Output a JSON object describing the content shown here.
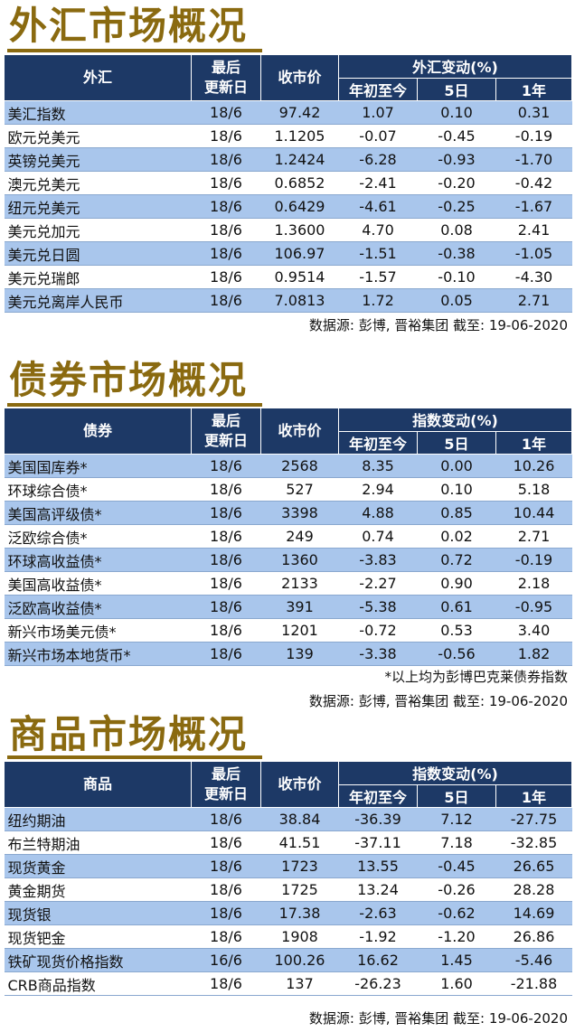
{
  "fx": {
    "title": "外汇市场概况",
    "headers": {
      "name": "外汇",
      "updated": "最后\n更新日",
      "close": "收市价",
      "change_group": "外汇变动(%)",
      "ytd": "年初至今",
      "d5": "5日",
      "y1": "1年"
    },
    "rows": [
      {
        "name": "美汇指数",
        "date": "18/6",
        "close": "97.42",
        "ytd": "1.07",
        "d5": "0.10",
        "y1": "0.31"
      },
      {
        "name": "欧元兑美元",
        "date": "18/6",
        "close": "1.1205",
        "ytd": "-0.07",
        "d5": "-0.45",
        "y1": "-0.19"
      },
      {
        "name": "英镑兑美元",
        "date": "18/6",
        "close": "1.2424",
        "ytd": "-6.28",
        "d5": "-0.93",
        "y1": "-1.70"
      },
      {
        "name": "澳元兑美元",
        "date": "18/6",
        "close": "0.6852",
        "ytd": "-2.41",
        "d5": "-0.20",
        "y1": "-0.42"
      },
      {
        "name": "纽元兑美元",
        "date": "18/6",
        "close": "0.6429",
        "ytd": "-4.61",
        "d5": "-0.25",
        "y1": "-1.67"
      },
      {
        "name": "美元兑加元",
        "date": "18/6",
        "close": "1.3600",
        "ytd": "4.70",
        "d5": "0.08",
        "y1": "2.41"
      },
      {
        "name": "美元兑日圆",
        "date": "18/6",
        "close": "106.97",
        "ytd": "-1.51",
        "d5": "-0.38",
        "y1": "-1.05"
      },
      {
        "name": "美元兑瑞郎",
        "date": "18/6",
        "close": "0.9514",
        "ytd": "-1.57",
        "d5": "-0.10",
        "y1": "-4.30"
      },
      {
        "name": "美元兑离岸人民币",
        "date": "18/6",
        "close": "7.0813",
        "ytd": "1.72",
        "d5": "0.05",
        "y1": "2.71"
      }
    ],
    "source": "数据源: 彭博, 晋裕集团 截至: 19-06-2020"
  },
  "bonds": {
    "title": "债券市场概况",
    "headers": {
      "name": "债券",
      "updated": "最后\n更新日",
      "close": "收市价",
      "change_group": "指数变动(%)",
      "ytd": "年初至今",
      "d5": "5日",
      "y1": "1年"
    },
    "rows": [
      {
        "name": "美国国库券*",
        "date": "18/6",
        "close": "2568",
        "ytd": "8.35",
        "d5": "0.00",
        "y1": "10.26"
      },
      {
        "name": "环球综合债*",
        "date": "18/6",
        "close": "527",
        "ytd": "2.94",
        "d5": "0.10",
        "y1": "5.18"
      },
      {
        "name": "美国高评级债*",
        "date": "18/6",
        "close": "3398",
        "ytd": "4.88",
        "d5": "0.85",
        "y1": "10.44"
      },
      {
        "name": "泛欧综合债*",
        "date": "18/6",
        "close": "249",
        "ytd": "0.74",
        "d5": "0.02",
        "y1": "2.71"
      },
      {
        "name": "环球高收益债*",
        "date": "18/6",
        "close": "1360",
        "ytd": "-3.83",
        "d5": "0.72",
        "y1": "-0.19"
      },
      {
        "name": "美国高收益债*",
        "date": "18/6",
        "close": "2133",
        "ytd": "-2.27",
        "d5": "0.90",
        "y1": "2.18"
      },
      {
        "name": "泛欧高收益债*",
        "date": "18/6",
        "close": "391",
        "ytd": "-5.38",
        "d5": "0.61",
        "y1": "-0.95"
      },
      {
        "name": "新兴市场美元债*",
        "date": "18/6",
        "close": "1201",
        "ytd": "-0.72",
        "d5": "0.53",
        "y1": "3.40"
      },
      {
        "name": "新兴市场本地货币*",
        "date": "18/6",
        "close": "139",
        "ytd": "-3.38",
        "d5": "-0.56",
        "y1": "1.82"
      }
    ],
    "note": "*以上均为彭博巴克莱债券指数",
    "source": "数据源: 彭博, 晋裕集团 截至: 19-06-2020"
  },
  "commodities": {
    "title": "商品市场概况",
    "headers": {
      "name": "商品",
      "updated": "最后\n更新日",
      "close": "收市价",
      "change_group": "指数变动(%)",
      "ytd": "年初至今",
      "d5": "5日",
      "y1": "1年"
    },
    "rows": [
      {
        "name": "纽约期油",
        "date": "18/6",
        "close": "38.84",
        "ytd": "-36.39",
        "d5": "7.12",
        "y1": "-27.75"
      },
      {
        "name": "布兰特期油",
        "date": "18/6",
        "close": "41.51",
        "ytd": "-37.11",
        "d5": "7.18",
        "y1": "-32.85"
      },
      {
        "name": "现货黄金",
        "date": "18/6",
        "close": "1723",
        "ytd": "13.55",
        "d5": "-0.45",
        "y1": "26.65"
      },
      {
        "name": "黄金期货",
        "date": "18/6",
        "close": "1725",
        "ytd": "13.24",
        "d5": "-0.26",
        "y1": "28.28"
      },
      {
        "name": "现货银",
        "date": "18/6",
        "close": "17.38",
        "ytd": "-2.63",
        "d5": "-0.62",
        "y1": "14.69"
      },
      {
        "name": "现货钯金",
        "date": "18/6",
        "close": "1908",
        "ytd": "-1.92",
        "d5": "-1.20",
        "y1": "26.86"
      },
      {
        "name": "铁矿现货价格指数",
        "date": "16/6",
        "close": "100.26",
        "ytd": "16.62",
        "d5": "1.45",
        "y1": "-5.46"
      },
      {
        "name": "CRB商品指数",
        "date": "18/6",
        "close": "137",
        "ytd": "-26.23",
        "d5": "1.60",
        "y1": "-21.88"
      }
    ],
    "source": "数据源: 彭博, 晋裕集团 截至: 19-06-2020"
  },
  "colors": {
    "title": "#8a6a10",
    "header_bg": "#1d3966",
    "row_shade": "#a9c6ec"
  }
}
